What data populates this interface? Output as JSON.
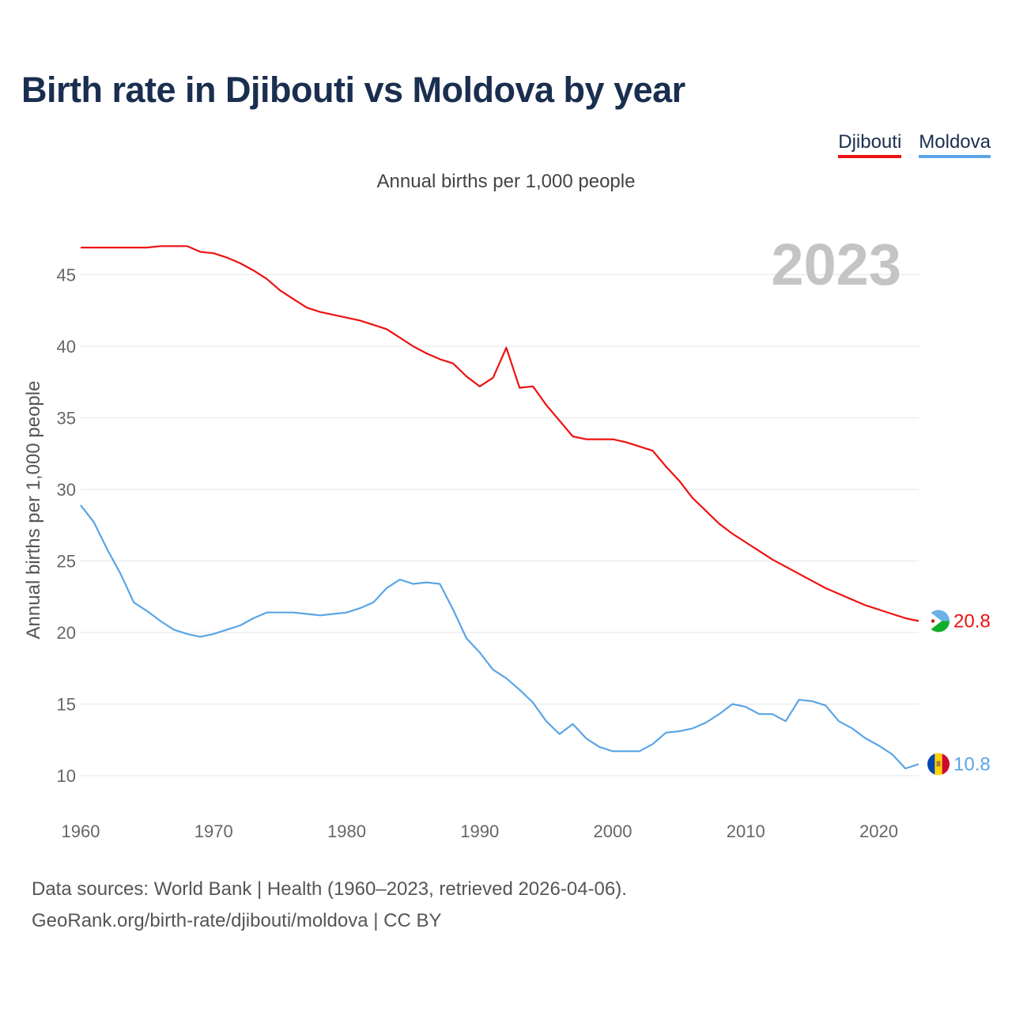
{
  "title": "Birth rate in Djibouti vs Moldova by year",
  "subtitle": "Annual births per 1,000 people",
  "legend": [
    {
      "label": "Djibouti",
      "color": "#ee1111"
    },
    {
      "label": "Moldova",
      "color": "#5aa5e6"
    }
  ],
  "footer": {
    "line1": "Data sources: World Bank | Health (1960–2023, retrieved 2026-04-06).",
    "line2": "GeoRank.org/birth-rate/djibouti/moldova | CC BY"
  },
  "chart_data": {
    "type": "line",
    "ylabel": "Annual births per 1,000 people",
    "year_label": "2023",
    "xlim": [
      1960,
      2023
    ],
    "ylim": [
      8,
      47
    ],
    "xticks": [
      1960,
      1970,
      1980,
      1990,
      2000,
      2010,
      2020
    ],
    "yticks": [
      10,
      15,
      20,
      25,
      30,
      35,
      40,
      45
    ],
    "x": [
      1960,
      1961,
      1962,
      1963,
      1964,
      1965,
      1966,
      1967,
      1968,
      1969,
      1970,
      1971,
      1972,
      1973,
      1974,
      1975,
      1976,
      1977,
      1978,
      1979,
      1980,
      1981,
      1982,
      1983,
      1984,
      1985,
      1986,
      1987,
      1988,
      1989,
      1990,
      1991,
      1992,
      1993,
      1994,
      1995,
      1996,
      1997,
      1998,
      1999,
      2000,
      2001,
      2002,
      2003,
      2004,
      2005,
      2006,
      2007,
      2008,
      2009,
      2010,
      2011,
      2012,
      2013,
      2014,
      2015,
      2016,
      2017,
      2018,
      2019,
      2020,
      2021,
      2022,
      2023
    ],
    "series": [
      {
        "name": "Djibouti",
        "color": "#ee1111",
        "end_label": "20.8",
        "values": [
          46.9,
          46.9,
          46.9,
          46.9,
          46.9,
          46.9,
          47.0,
          47.0,
          47.0,
          46.6,
          46.5,
          46.2,
          45.8,
          45.3,
          44.7,
          43.9,
          43.3,
          42.7,
          42.4,
          42.2,
          42.0,
          41.8,
          41.5,
          41.2,
          40.6,
          40.0,
          39.5,
          39.1,
          38.8,
          37.9,
          37.2,
          37.8,
          39.9,
          37.1,
          37.2,
          35.9,
          34.8,
          33.7,
          33.5,
          33.5,
          33.5,
          33.3,
          33.0,
          32.7,
          31.6,
          30.6,
          29.4,
          28.5,
          27.6,
          26.9,
          26.3,
          25.7,
          25.1,
          24.6,
          24.1,
          23.6,
          23.1,
          22.7,
          22.3,
          21.9,
          21.6,
          21.3,
          21.0,
          20.8
        ]
      },
      {
        "name": "Moldova",
        "color": "#5aa5e6",
        "end_label": "10.8",
        "values": [
          28.9,
          27.7,
          25.8,
          24.1,
          22.1,
          21.5,
          20.8,
          20.2,
          19.9,
          19.7,
          19.9,
          20.2,
          20.5,
          21.0,
          21.4,
          21.4,
          21.4,
          21.3,
          21.2,
          21.3,
          21.4,
          21.7,
          22.1,
          23.1,
          23.7,
          23.4,
          23.5,
          23.4,
          21.6,
          19.6,
          18.6,
          17.4,
          16.8,
          16.0,
          15.1,
          13.8,
          12.9,
          13.6,
          12.6,
          12.0,
          11.7,
          11.7,
          11.7,
          12.2,
          13.0,
          13.1,
          13.3,
          13.7,
          14.3,
          15.0,
          14.8,
          14.3,
          14.3,
          13.8,
          15.3,
          15.2,
          14.9,
          13.8,
          13.3,
          12.6,
          12.1,
          11.5,
          10.5,
          10.8
        ]
      }
    ]
  }
}
